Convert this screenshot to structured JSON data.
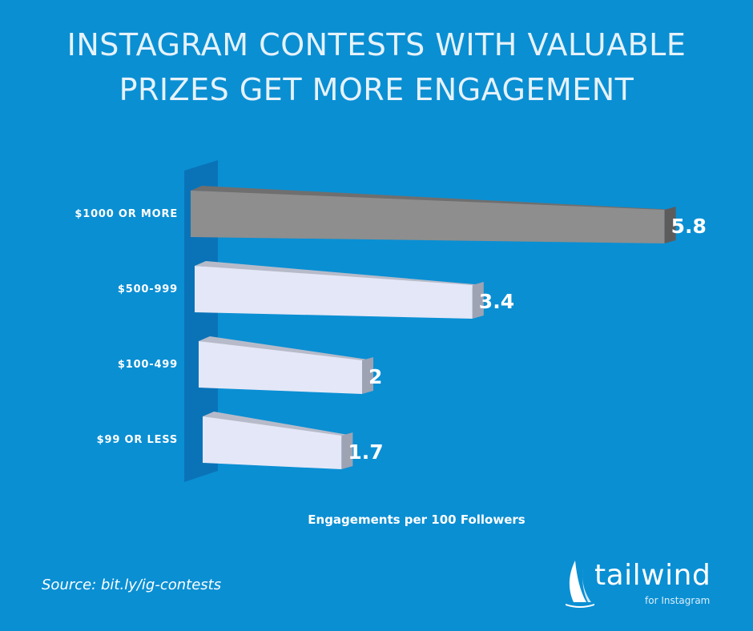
{
  "chart_data": {
    "type": "bar",
    "orientation": "horizontal",
    "title_line1": "INSTAGRAM CONTESTS WITH VALUABLE",
    "title_line2": "PRIZES GET MORE ENGAGEMENT",
    "categories": [
      "$1000 OR MORE",
      "$500-999",
      "$100-499",
      "$99 OR LESS"
    ],
    "values": [
      5.8,
      3.4,
      2,
      1.7
    ],
    "value_labels": [
      "5.8",
      "3.4",
      "2",
      "1.7"
    ],
    "xlabel": "Engagements per 100 Followers",
    "ylabel": "",
    "xlim": [
      0,
      6
    ],
    "grid": false,
    "colors": {
      "highlight_bar": "#8e8e8e",
      "bar": "#e4e7f7",
      "background": "#0a8fd3"
    }
  },
  "source": "Source: bit.ly/ig-contests",
  "logo": {
    "name": "tailwind",
    "tagline": "for Instagram"
  }
}
